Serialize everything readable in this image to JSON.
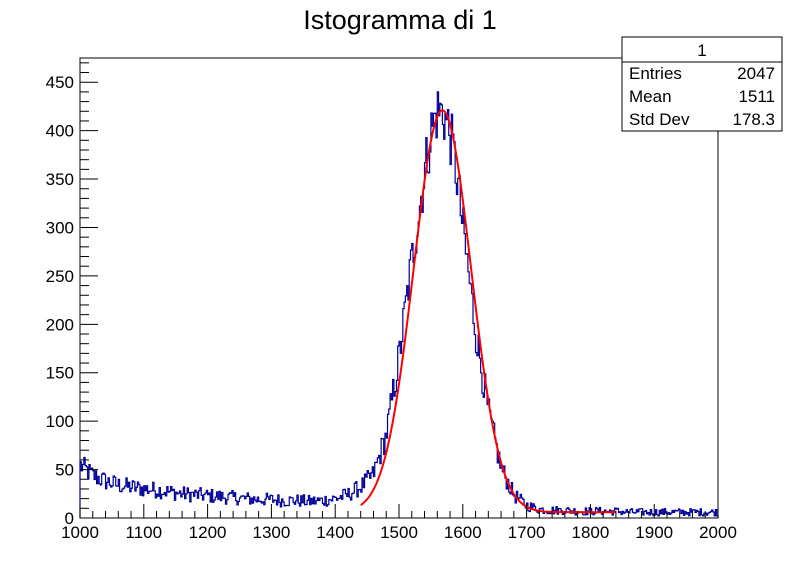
{
  "chart_data": {
    "type": "bar",
    "title": "Istogramma di 1",
    "xlabel": "",
    "ylabel": "",
    "xlim": [
      1000,
      2000
    ],
    "ylim": [
      0,
      475
    ],
    "x_ticks": [
      "1000",
      "1100",
      "1200",
      "1300",
      "1400",
      "1500",
      "1600",
      "1700",
      "1800",
      "1900",
      "2000"
    ],
    "y_ticks": [
      "0",
      "50",
      "100",
      "150",
      "200",
      "250",
      "300",
      "350",
      "400",
      "450"
    ],
    "grid": false,
    "stats_box": {
      "name": "1",
      "rows": [
        {
          "label": "Entries",
          "value": "2047"
        },
        {
          "label": "Mean",
          "value": "1511"
        },
        {
          "label": "Std Dev",
          "value": "178.3"
        }
      ]
    },
    "histogram": {
      "name": "1",
      "color": "#000099",
      "x": [
        1000,
        1020,
        1040,
        1060,
        1080,
        1100,
        1120,
        1140,
        1160,
        1180,
        1200,
        1220,
        1240,
        1260,
        1280,
        1300,
        1320,
        1340,
        1360,
        1380,
        1400,
        1420,
        1440,
        1460,
        1480,
        1500,
        1520,
        1540,
        1550,
        1560,
        1570,
        1580,
        1590,
        1600,
        1620,
        1640,
        1660,
        1680,
        1700,
        1720,
        1740,
        1760,
        1780,
        1800,
        1820,
        1840,
        1860,
        1880,
        1900,
        1920,
        1940,
        1960,
        1980,
        2000
      ],
      "values": [
        55,
        44,
        38,
        34,
        32,
        30,
        29,
        27,
        25,
        24,
        23,
        22,
        21,
        20,
        19,
        19,
        18,
        18,
        17,
        18,
        20,
        24,
        32,
        45,
        85,
        165,
        265,
        355,
        398,
        420,
        418,
        398,
        358,
        300,
        195,
        110,
        52,
        24,
        13,
        9,
        8,
        8,
        7,
        7,
        7,
        7,
        6,
        6,
        6,
        6,
        6,
        6,
        6,
        6
      ]
    },
    "fit": {
      "color": "#ff0000",
      "x_range": [
        1440,
        1840
      ],
      "amplitude": 415,
      "mean": 1568,
      "sigma": 45,
      "baseline": 6
    }
  }
}
